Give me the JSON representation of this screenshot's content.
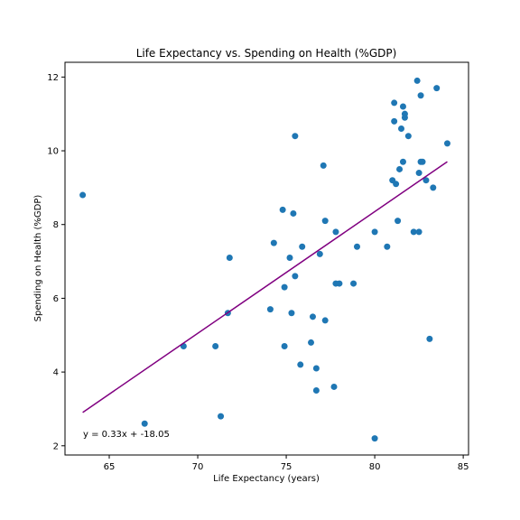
{
  "chart_data": {
    "type": "scatter",
    "title": "Life Expectancy vs. Spending on Health (%GDP)",
    "xlabel": "Life Expectancy (years)",
    "ylabel": "Spending on Health (%GDP)",
    "xlim": [
      62.5,
      85.3
    ],
    "ylim": [
      1.75,
      12.4
    ],
    "xticks": [
      65,
      70,
      75,
      80,
      85
    ],
    "yticks": [
      2,
      4,
      6,
      8,
      10,
      12
    ],
    "grid": false,
    "annotation": "y = 0.33x + -18.05",
    "colors": {
      "points": "#1f77b4",
      "regression": "#800080"
    },
    "series": [
      {
        "x": [
          63.5,
          67.0,
          69.2,
          71.0,
          71.3,
          71.7,
          71.8,
          74.1,
          74.3,
          74.8,
          74.9,
          74.9,
          75.2,
          75.3,
          75.4,
          75.5,
          75.5,
          75.8,
          75.9,
          76.4,
          76.5,
          76.7,
          76.7,
          76.9,
          77.1,
          77.2,
          77.2,
          77.7,
          77.8,
          77.8,
          78.0,
          78.8,
          79.0,
          80.0,
          80.0,
          80.7,
          81.0,
          81.1,
          81.1,
          81.2,
          81.3,
          81.4,
          81.5,
          81.6,
          81.6,
          81.7,
          81.7,
          81.9,
          82.2,
          82.4,
          82.5,
          82.5,
          82.6,
          82.6,
          82.7,
          82.9,
          83.1,
          83.3,
          83.5,
          84.1
        ],
        "y": [
          8.8,
          2.6,
          4.7,
          4.7,
          2.8,
          5.6,
          7.1,
          5.7,
          7.5,
          8.4,
          4.7,
          6.3,
          7.1,
          5.6,
          8.3,
          6.6,
          10.4,
          4.2,
          7.4,
          4.8,
          5.5,
          3.5,
          4.1,
          7.2,
          9.6,
          5.4,
          8.1,
          3.6,
          6.4,
          7.8,
          6.4,
          6.4,
          7.4,
          2.2,
          7.8,
          7.4,
          9.2,
          10.8,
          11.3,
          9.1,
          8.1,
          9.5,
          10.6,
          9.7,
          11.2,
          11.0,
          10.9,
          10.4,
          7.8,
          11.9,
          9.4,
          7.8,
          11.5,
          9.7,
          9.7,
          9.2,
          4.9,
          9.0,
          11.7,
          10.2
        ]
      }
    ],
    "regression": {
      "slope": 0.33,
      "intercept": -18.05,
      "x_start": 63.5,
      "x_end": 84.1
    }
  }
}
